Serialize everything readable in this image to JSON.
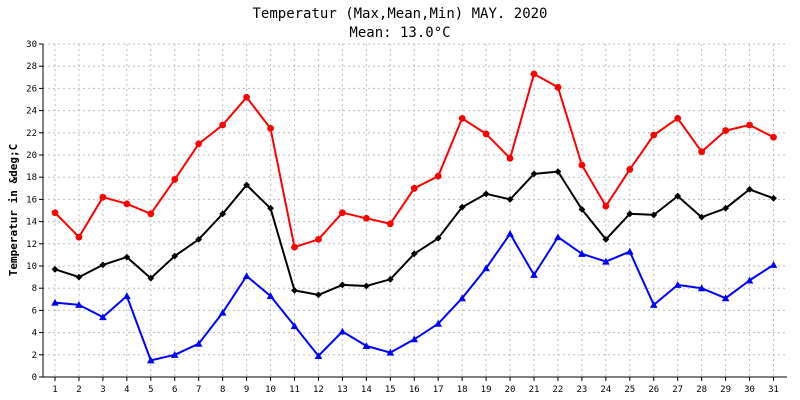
{
  "chart_data": {
    "type": "line",
    "title": "Temperatur (Max,Mean,Min) MAY. 2020",
    "subtitle": "Mean: 13.0°C",
    "ylabel": "Temperatur in &deg;C",
    "xlabel": "",
    "ylim": [
      0,
      30
    ],
    "y_ticks": [
      0,
      2,
      4,
      6,
      8,
      10,
      12,
      14,
      16,
      18,
      20,
      22,
      24,
      26,
      28,
      30
    ],
    "categories": [
      "1",
      "2",
      "3",
      "4",
      "5",
      "6",
      "7",
      "8",
      "9",
      "10",
      "11",
      "12",
      "13",
      "14",
      "15",
      "16",
      "17",
      "18",
      "19",
      "20",
      "21",
      "22",
      "23",
      "24",
      "25",
      "26",
      "27",
      "28",
      "29",
      "30",
      "31"
    ],
    "grid": true,
    "series": [
      {
        "name": "Max",
        "color": "#ff0000",
        "marker": "circle",
        "values": [
          14.8,
          12.6,
          16.2,
          15.6,
          14.7,
          17.8,
          21.0,
          22.7,
          25.2,
          22.4,
          11.7,
          12.4,
          14.8,
          14.3,
          13.8,
          17.0,
          18.1,
          23.3,
          21.9,
          19.7,
          27.3,
          26.1,
          19.1,
          15.4,
          18.7,
          21.8,
          23.3,
          20.3,
          22.2,
          22.7,
          21.6
        ]
      },
      {
        "name": "Mean",
        "color": "#000000",
        "marker": "diamond",
        "values": [
          9.7,
          9.0,
          10.1,
          10.8,
          8.9,
          10.9,
          12.4,
          14.7,
          17.3,
          15.2,
          7.8,
          7.4,
          8.3,
          8.2,
          8.8,
          11.1,
          12.5,
          15.3,
          16.5,
          16.0,
          18.3,
          18.5,
          15.1,
          12.4,
          14.7,
          14.6,
          16.3,
          14.4,
          15.2,
          16.9,
          16.1
        ]
      },
      {
        "name": "Min",
        "color": "#0000ff",
        "marker": "triangle",
        "values": [
          6.7,
          6.5,
          5.4,
          7.3,
          1.5,
          2.0,
          3.0,
          5.8,
          9.1,
          7.3,
          4.6,
          1.9,
          4.1,
          2.8,
          2.2,
          3.4,
          4.8,
          7.1,
          9.8,
          12.9,
          9.2,
          12.6,
          11.1,
          10.4,
          11.3,
          6.5,
          8.3,
          8.0,
          7.1,
          8.7,
          10.1
        ]
      }
    ]
  }
}
